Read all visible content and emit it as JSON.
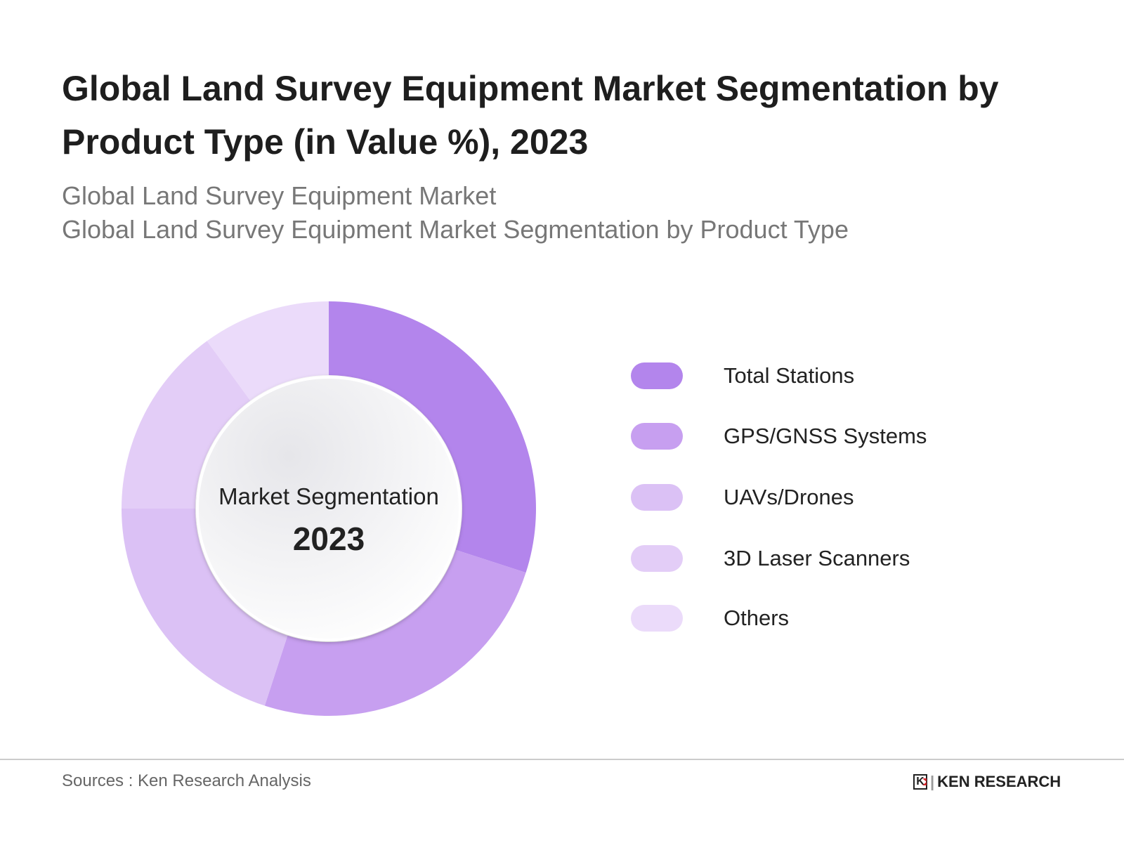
{
  "title": "Global Land Survey Equipment Market Segmentation by Product Type (in Value %), 2023",
  "subtitle_lines": [
    "Global Land Survey Equipment Market",
    "Global Land Survey Equipment Market Segmentation by Product Type"
  ],
  "center_label": {
    "line1": "Market Segmentation",
    "line2": "2023"
  },
  "source": "Sources : Ken Research Analysis",
  "logo_text": "KEN RESEARCH",
  "chart_data": {
    "type": "pie",
    "donut": true,
    "categories": [
      "Total Stations",
      "GPS/GNSS Systems",
      "UAVs/Drones",
      "3D Laser Scanners",
      "Others"
    ],
    "values": [
      30,
      25,
      20,
      15,
      10
    ],
    "unit": "%",
    "colors": [
      "#b385ec",
      "#c79ff0",
      "#dbc1f5",
      "#e3cdf7",
      "#ebdbfa"
    ],
    "start_angle": "top, clockwise",
    "legend_placement": "right"
  }
}
